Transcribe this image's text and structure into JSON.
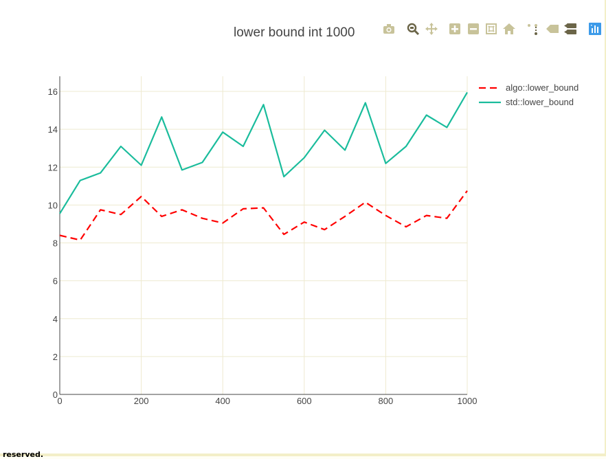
{
  "page": {
    "footer_text": "reserved."
  },
  "modebar": {
    "buttons": [
      {
        "name": "camera-icon"
      },
      {
        "name": "zoom-icon"
      },
      {
        "name": "pan-icon"
      },
      {
        "name": "zoom-in-icon"
      },
      {
        "name": "zoom-out-icon"
      },
      {
        "name": "autoscale-icon"
      },
      {
        "name": "home-icon"
      },
      {
        "name": "spike-lines-icon"
      },
      {
        "name": "hover-closest-icon"
      },
      {
        "name": "hover-compare-icon"
      },
      {
        "name": "plotly-logo-icon"
      }
    ],
    "icon_color": "#c8c39a",
    "icon_dark_color": "#6b6548",
    "logo_color": "#3d9be9"
  },
  "chart_data": {
    "type": "line",
    "title": "lower bound int 1000",
    "xlabel": "",
    "ylabel": "",
    "xlim": [
      0,
      1000
    ],
    "ylim": [
      0,
      16.8
    ],
    "xticks": [
      0,
      200,
      400,
      600,
      800,
      1000
    ],
    "yticks": [
      0,
      2,
      4,
      6,
      8,
      10,
      12,
      14,
      16
    ],
    "grid": true,
    "grid_color": "#eeead0",
    "legend_position": "top-right",
    "x": [
      0,
      50,
      100,
      150,
      200,
      250,
      300,
      350,
      400,
      450,
      500,
      550,
      600,
      650,
      700,
      750,
      800,
      850,
      900,
      950,
      1000
    ],
    "series": [
      {
        "name": "algo::lower_bound",
        "color": "#ff0000",
        "dash": "dashed",
        "values": [
          8.4,
          8.15,
          9.75,
          9.5,
          10.45,
          9.4,
          9.75,
          9.3,
          9.05,
          9.8,
          9.85,
          8.45,
          9.1,
          8.7,
          9.4,
          10.15,
          9.45,
          8.85,
          9.45,
          9.3,
          10.75
        ]
      },
      {
        "name": "std::lower_bound",
        "color": "#1abc9c",
        "dash": "solid",
        "values": [
          9.55,
          11.3,
          11.7,
          13.1,
          12.1,
          14.65,
          11.85,
          12.25,
          13.85,
          13.1,
          15.3,
          11.5,
          12.5,
          13.95,
          12.9,
          15.4,
          12.2,
          13.1,
          14.75,
          14.1,
          15.95
        ]
      }
    ]
  }
}
